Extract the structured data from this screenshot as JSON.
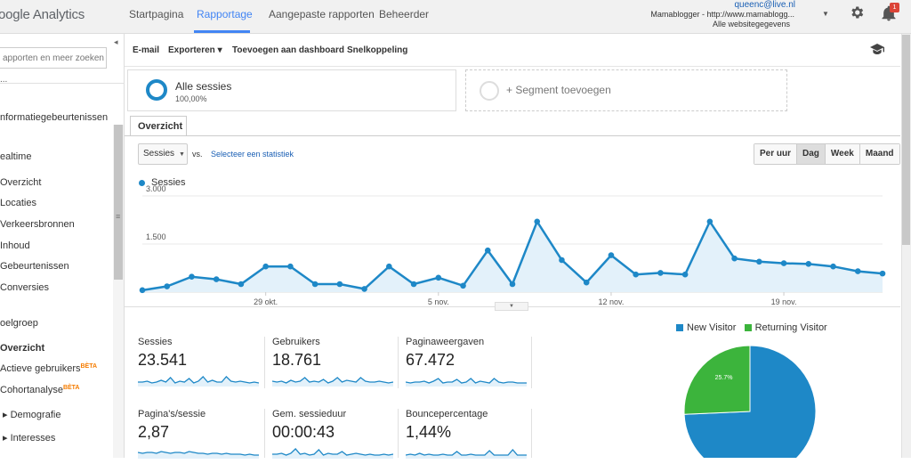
{
  "app": {
    "logo_text": "oogle Analytics"
  },
  "nav": {
    "tabs": [
      {
        "label": "Startpagina"
      },
      {
        "label": "Rapportage"
      },
      {
        "label": "Aangepaste rapporten"
      },
      {
        "label": "Beheerder"
      }
    ],
    "active_index": 1
  },
  "account": {
    "email": "queenc@live.nl",
    "property": "Mamablogger - http://www.mamablogg...",
    "view": "Alle websitegegevens",
    "notifications_count": "1"
  },
  "icons": {
    "settings": "gear-icon",
    "notifications": "bell-icon",
    "academy": "graduation-cap-icon",
    "dropdown": "chevron-down-icon"
  },
  "sidebar": {
    "search_placeholder": "apporten en meer zoeken",
    "items": [
      {
        "label": "..."
      },
      {
        "label": "nformatiegebeurtenissen"
      },
      {
        "label": "ealtime"
      },
      {
        "label": "Overzicht"
      },
      {
        "label": "Locaties"
      },
      {
        "label": "Verkeersbronnen"
      },
      {
        "label": "Inhoud"
      },
      {
        "label": "Gebeurtenissen"
      },
      {
        "label": "Conversies"
      },
      {
        "label": "oelgroep"
      },
      {
        "label": "Overzicht"
      },
      {
        "label": "Actieve gebruikers"
      },
      {
        "label": "Cohortanalyse"
      },
      {
        "label": "▸ Demografie"
      },
      {
        "label": "▸ Interesses"
      }
    ],
    "beta_label": "BÈTA"
  },
  "toolbar": {
    "email": "E-mail",
    "export": "Exporteren ▾",
    "add_dashboard": "Toevoegen aan dashboard",
    "shortcut": "Snelkoppeling"
  },
  "segments": {
    "active_title": "Alle sessies",
    "active_pct": "100,00%",
    "add_label": "+ Segment toevoegen"
  },
  "report": {
    "tab_label": "Overzicht",
    "metric_select": "Sessies",
    "vs_label": "vs.",
    "compare_link": "Selecteer een statistiek",
    "periods": [
      "Per uur",
      "Dag",
      "Week",
      "Maand"
    ],
    "active_period_index": 1,
    "legend_label": "Sessies"
  },
  "colors": {
    "series": "#1e88c7",
    "series_fill": "#e3f1fa",
    "new_visitor": "#1e88c7",
    "returning_visitor": "#3cb43c",
    "nav_active": "#4285f4"
  },
  "chart_data": [
    {
      "type": "area",
      "x_ticks": [
        "29 okt.",
        "5 nov.",
        "12 nov.",
        "19 nov."
      ],
      "x_tick_index": [
        5,
        12,
        19,
        26
      ],
      "y_ticks": [
        "3.000",
        "1.500"
      ],
      "y_tick_values": [
        3000,
        1500
      ],
      "ylim": [
        0,
        3000
      ],
      "series": [
        {
          "name": "Sessies",
          "values": [
            60,
            180,
            480,
            400,
            250,
            800,
            800,
            250,
            250,
            100,
            800,
            250,
            450,
            200,
            1300,
            250,
            2200,
            1000,
            300,
            1150,
            550,
            600,
            550,
            2200,
            1050,
            950,
            900,
            880,
            800,
            650,
            580
          ]
        }
      ]
    },
    {
      "type": "pie",
      "title": "",
      "series": [
        {
          "name": "New Visitor",
          "value": 74.3,
          "label": "74.3%"
        },
        {
          "name": "Returning Visitor",
          "value": 25.7,
          "label": "25.7%"
        }
      ]
    }
  ],
  "kpis": [
    {
      "label": "Sessies",
      "value": "23.541"
    },
    {
      "label": "Gebruikers",
      "value": "18.761"
    },
    {
      "label": "Paginaweergaven",
      "value": "67.472"
    },
    {
      "label": "Pagina's/sessie",
      "value": "2,87"
    },
    {
      "label": "Gem. sessieduur",
      "value": "00:00:43"
    },
    {
      "label": "Bouncepercentage",
      "value": "1,44%"
    }
  ]
}
